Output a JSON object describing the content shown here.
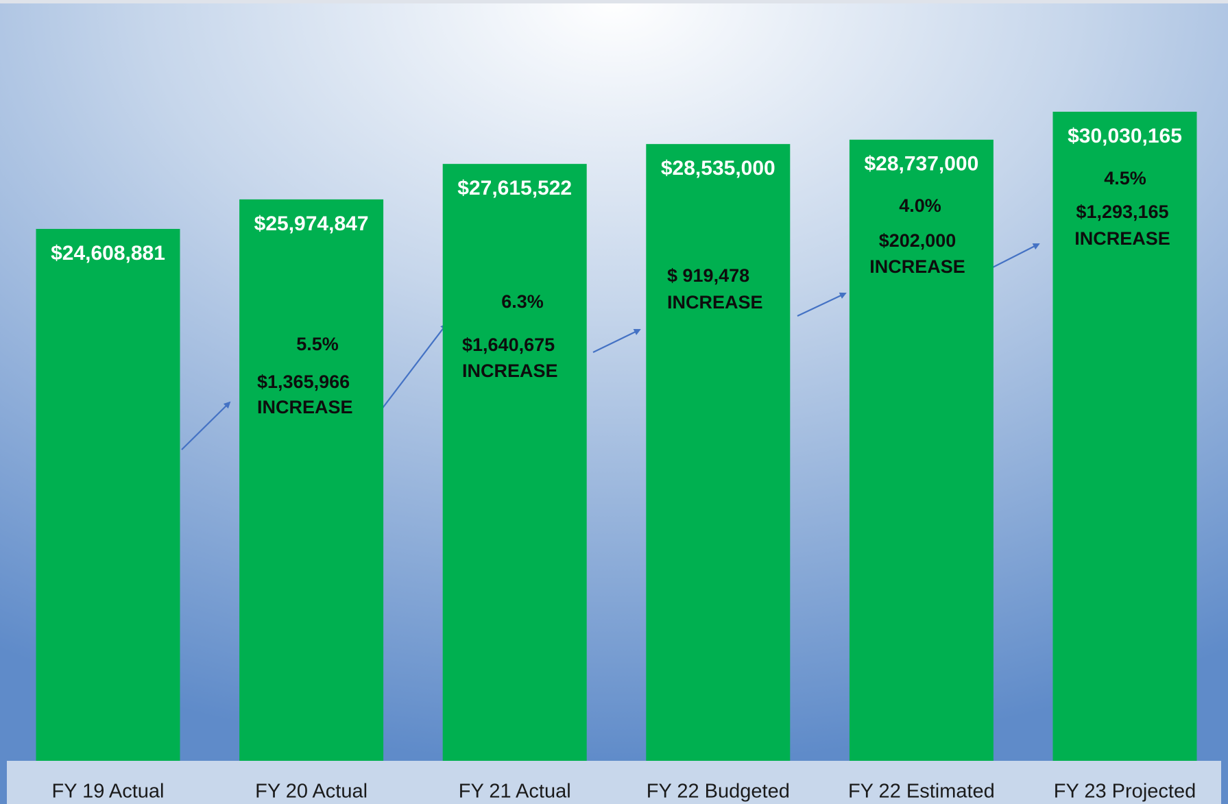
{
  "chart_data": {
    "type": "bar",
    "categories": [
      "FY 19 Actual",
      "FY 20 Actual",
      "FY 21 Actual",
      "FY 22 Budgeted",
      "FY 22 Estimated",
      "FY 23 Projected"
    ],
    "values": [
      24608881,
      25974847,
      27615522,
      28535000,
      28737000,
      30030165
    ],
    "value_labels": [
      "$24,608,881",
      "$25,974,847",
      "$27,615,522",
      "$28,535,000",
      "$28,737,000",
      "$30,030,165"
    ],
    "color": "#00b050",
    "annotations": [
      {
        "pct": "5.5%",
        "amount": "$1,365,966",
        "note": "INCREASE"
      },
      {
        "pct": "6.3%",
        "amount": "$1,640,675",
        "note": "INCREASE"
      },
      {
        "amount": "$ 919,478",
        "note": "INCREASE"
      },
      {
        "pct": "4.0%",
        "amount": "$202,000",
        "note": "INCREASE"
      },
      {
        "pct": "4.5%",
        "amount": "$1,293,165",
        "note": "INCREASE"
      }
    ]
  }
}
